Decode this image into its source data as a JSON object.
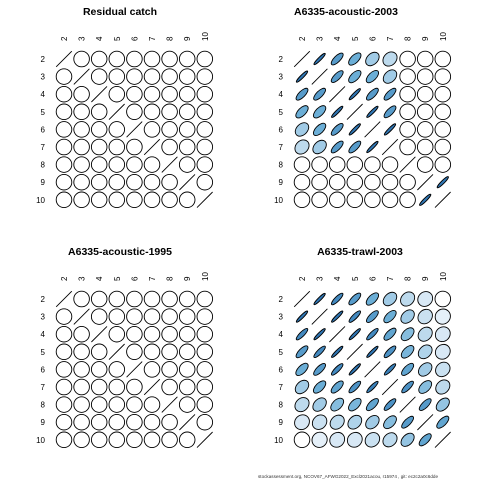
{
  "chart_data": [
    {
      "type": "correlation-matrix",
      "title": "Residual catch",
      "ages": [
        "2",
        "3",
        "4",
        "5",
        "6",
        "7",
        "8",
        "9",
        "10"
      ],
      "correlations": [
        [
          1,
          0,
          0,
          0,
          0,
          0,
          0,
          0,
          0
        ],
        [
          0,
          1,
          0,
          0,
          0,
          0,
          0,
          0,
          0
        ],
        [
          0,
          0,
          1,
          0,
          0,
          0,
          0,
          0,
          0
        ],
        [
          0,
          0,
          0,
          1,
          0,
          0,
          0,
          0,
          0
        ],
        [
          0,
          0,
          0,
          0,
          1,
          0,
          0,
          0,
          0
        ],
        [
          0,
          0,
          0,
          0,
          0,
          1,
          0,
          0,
          0
        ],
        [
          0,
          0,
          0,
          0,
          0,
          0,
          1,
          0,
          0
        ],
        [
          0,
          0,
          0,
          0,
          0,
          0,
          0,
          1,
          0
        ],
        [
          0,
          0,
          0,
          0,
          0,
          0,
          0,
          0,
          1
        ]
      ]
    },
    {
      "type": "correlation-matrix",
      "title": "A6335-acoustic-2003",
      "ages": [
        "2",
        "3",
        "4",
        "5",
        "6",
        "7",
        "8",
        "9",
        "10"
      ],
      "correlations": [
        [
          1.0,
          0.8,
          0.6,
          0.5,
          0.3,
          0.2,
          0,
          0,
          0
        ],
        [
          0.8,
          1.0,
          0.6,
          0.5,
          0.5,
          0.3,
          0,
          0,
          0
        ],
        [
          0.6,
          0.6,
          1.0,
          0.8,
          0.6,
          0.6,
          0,
          0,
          0
        ],
        [
          0.5,
          0.5,
          0.8,
          1.0,
          0.8,
          0.6,
          0,
          0,
          0
        ],
        [
          0.3,
          0.5,
          0.6,
          0.8,
          1.0,
          0.8,
          0,
          0,
          0
        ],
        [
          0.2,
          0.3,
          0.6,
          0.6,
          0.8,
          1.0,
          0,
          0,
          0
        ],
        [
          0,
          0,
          0,
          0,
          0,
          0,
          1.0,
          0,
          0
        ],
        [
          0,
          0,
          0,
          0,
          0,
          0,
          0,
          1.0,
          0.8
        ],
        [
          0,
          0,
          0,
          0,
          0,
          0,
          0,
          0.8,
          1.0
        ]
      ]
    },
    {
      "type": "correlation-matrix",
      "title": "A6335-acoustic-1995",
      "ages": [
        "2",
        "3",
        "4",
        "5",
        "6",
        "7",
        "8",
        "9",
        "10"
      ],
      "correlations": [
        [
          1,
          0,
          0,
          0,
          0,
          0,
          0,
          0,
          0
        ],
        [
          0,
          1,
          0,
          0,
          0,
          0,
          0,
          0,
          0
        ],
        [
          0,
          0,
          1,
          0,
          0,
          0,
          0,
          0,
          0
        ],
        [
          0,
          0,
          0,
          1,
          0,
          0,
          0,
          0,
          0
        ],
        [
          0,
          0,
          0,
          0,
          1,
          0,
          0,
          0,
          0
        ],
        [
          0,
          0,
          0,
          0,
          0,
          1,
          0,
          0,
          0
        ],
        [
          0,
          0,
          0,
          0,
          0,
          0,
          1,
          0,
          0
        ],
        [
          0,
          0,
          0,
          0,
          0,
          0,
          0,
          1,
          0
        ],
        [
          0,
          0,
          0,
          0,
          0,
          0,
          0,
          0,
          1
        ]
      ]
    },
    {
      "type": "correlation-matrix",
      "title": "A6335-trawl-2003",
      "ages": [
        "2",
        "3",
        "4",
        "5",
        "6",
        "7",
        "8",
        "9",
        "10"
      ],
      "correlations": [
        [
          1.0,
          0.8,
          0.7,
          0.6,
          0.5,
          0.3,
          0.2,
          0.1,
          0
        ],
        [
          0.8,
          1.0,
          0.8,
          0.7,
          0.6,
          0.5,
          0.3,
          0.15,
          0.05
        ],
        [
          0.7,
          0.8,
          1.0,
          0.8,
          0.7,
          0.55,
          0.4,
          0.2,
          0.1
        ],
        [
          0.6,
          0.7,
          0.8,
          1.0,
          0.8,
          0.65,
          0.45,
          0.25,
          0.1
        ],
        [
          0.5,
          0.6,
          0.7,
          0.8,
          1.0,
          0.75,
          0.55,
          0.3,
          0.15
        ],
        [
          0.3,
          0.5,
          0.55,
          0.65,
          0.75,
          1.0,
          0.65,
          0.4,
          0.2
        ],
        [
          0.2,
          0.3,
          0.4,
          0.45,
          0.55,
          0.65,
          1.0,
          0.6,
          0.35
        ],
        [
          0.1,
          0.15,
          0.2,
          0.25,
          0.3,
          0.4,
          0.6,
          1.0,
          0.55
        ],
        [
          0,
          0.05,
          0.1,
          0.1,
          0.15,
          0.2,
          0.35,
          0.55,
          1.0
        ]
      ]
    }
  ],
  "footer": "stockassessment.org, NCOV67_AFWG2022_Excl2021acou, r15974 , git: ec2c2a0c6dde",
  "colors": {
    "low": "#f3f7fd",
    "mid": "#6baed6",
    "high": "#08519c",
    "stroke": "#000000"
  }
}
